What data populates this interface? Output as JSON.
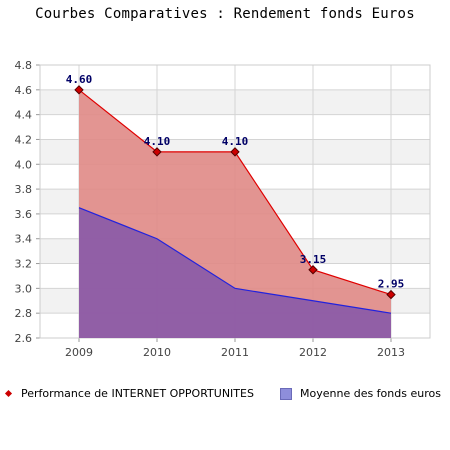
{
  "title": "Courbes Comparatives : Rendement fonds Euros",
  "chart_data": {
    "type": "area",
    "title": "Courbes Comparatives : Rendement fonds Euros",
    "xlabel": "",
    "ylabel": "",
    "categories": [
      "2009",
      "2010",
      "2011",
      "2012",
      "2013"
    ],
    "ylim": [
      2.6,
      4.8
    ],
    "yticks": [
      "2.6",
      "2.8",
      "3.0",
      "3.2",
      "3.4",
      "3.6",
      "3.8",
      "4.0",
      "4.2",
      "4.4",
      "4.6",
      "4.8"
    ],
    "grid": true,
    "legend_position": "bottom",
    "series": [
      {
        "name": "Performance de INTERNET OPPORTUNITES",
        "values": [
          4.6,
          4.1,
          4.1,
          3.15,
          2.95
        ],
        "labels": [
          "4.60",
          "4.10",
          "4.10",
          "3.15",
          "2.95"
        ],
        "line_color": "#e00000",
        "fill_color": "#e08a86",
        "marker": "diamond"
      },
      {
        "name": "Moyenne des fonds euros",
        "values": [
          3.65,
          3.4,
          3.0,
          2.9,
          2.8
        ],
        "line_color": "#2222dd",
        "fill_color": "#8a5aa8"
      }
    ]
  }
}
